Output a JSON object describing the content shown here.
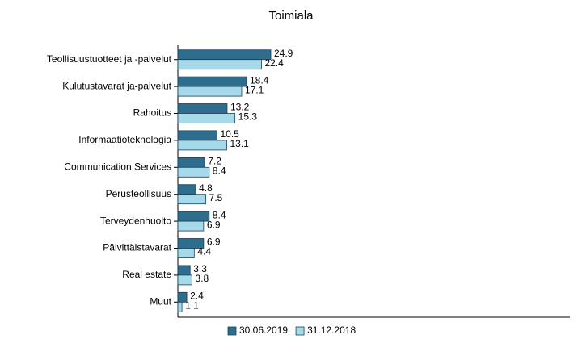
{
  "chart_data": {
    "type": "hbar",
    "title": "Toimiala",
    "categories": [
      "Teollisuustuotteet ja -palvelut",
      "Kulutustavarat ja-palvelut",
      "Rahoitus",
      "Informaatioteknologia",
      "Communication Services",
      "Perusteollisuus",
      "Terveydenhuolto",
      "Päivittäistavarat",
      "Real estate",
      "Muut"
    ],
    "series": [
      {
        "name": "30.06.2019",
        "color": "#2f6d8f",
        "values": [
          24.9,
          18.4,
          13.2,
          10.5,
          7.2,
          4.8,
          8.4,
          6.9,
          3.3,
          2.4
        ]
      },
      {
        "name": "31.12.2018",
        "color": "#a6d9ea",
        "values": [
          22.4,
          17.1,
          15.3,
          13.1,
          8.4,
          7.5,
          6.9,
          4.4,
          3.8,
          1.1
        ]
      }
    ],
    "xlim": [
      0,
      105
    ],
    "legend": "bottom"
  }
}
